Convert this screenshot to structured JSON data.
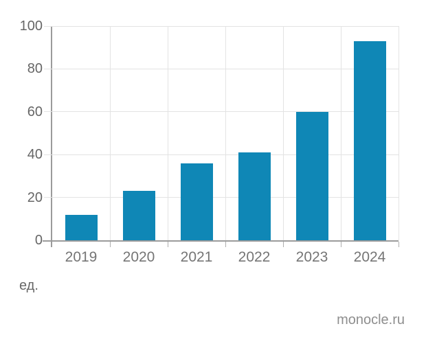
{
  "footer": {
    "unit_label": "ед.",
    "source": "monocle.ru"
  },
  "colors": {
    "bar": "#0f87b6",
    "grid": "#e3e3e3",
    "axis": "#9b9b9b",
    "tick": "#aeaeae",
    "y_label": "#666666",
    "x_label": "#757575",
    "source_text": "#8e8e8e"
  },
  "chart_data": {
    "type": "bar",
    "categories": [
      "2019",
      "2020",
      "2021",
      "2022",
      "2023",
      "2024"
    ],
    "values": [
      12,
      23,
      36,
      41,
      60,
      93
    ],
    "title": "",
    "xlabel": "",
    "ylabel": "ед.",
    "ylim": [
      0,
      100
    ],
    "yticks": [
      0,
      20,
      40,
      60,
      80,
      100
    ],
    "grid": true,
    "legend": false,
    "bar_color": "#0f87b6"
  }
}
